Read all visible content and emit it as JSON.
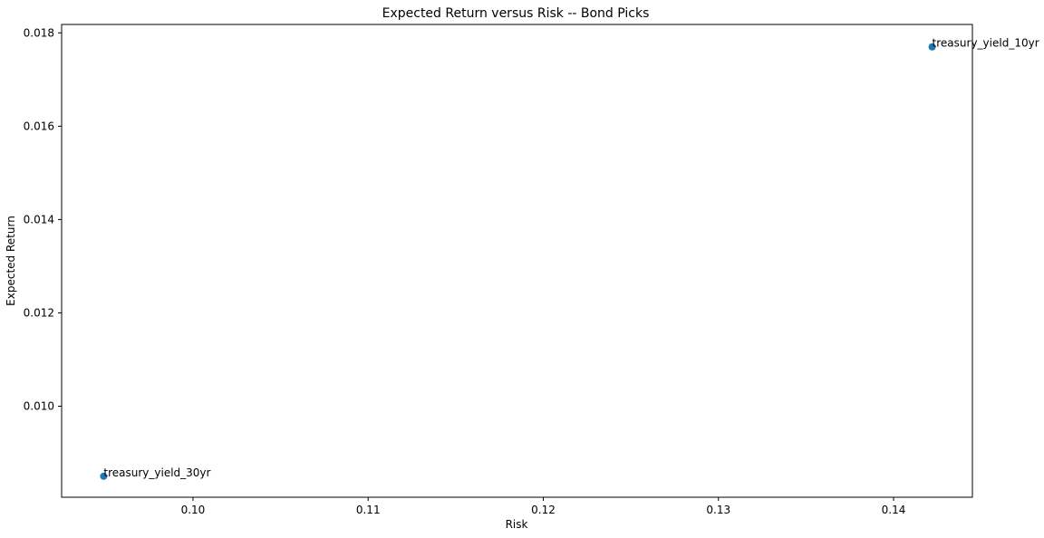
{
  "chart_data": {
    "type": "scatter",
    "title": "Expected Return versus Risk -- Bond Picks",
    "xlabel": "Risk",
    "ylabel": "Expected Return",
    "xlim": [
      0.0925,
      0.1445
    ],
    "ylim": [
      0.00805,
      0.01818
    ],
    "x_ticks": [
      0.1,
      0.11,
      0.12,
      0.13,
      0.14
    ],
    "x_tick_labels": [
      "0.10",
      "0.11",
      "0.12",
      "0.13",
      "0.14"
    ],
    "y_ticks": [
      0.01,
      0.012,
      0.014,
      0.016,
      0.018
    ],
    "y_tick_labels": [
      "0.010",
      "0.012",
      "0.014",
      "0.016",
      "0.018"
    ],
    "grid": false,
    "marker_color": "#1f77b4",
    "points": [
      {
        "label": "treasury_yield_10yr",
        "x": 0.1422,
        "y": 0.0177
      },
      {
        "label": "treasury_yield_30yr",
        "x": 0.0949,
        "y": 0.0085
      }
    ]
  }
}
